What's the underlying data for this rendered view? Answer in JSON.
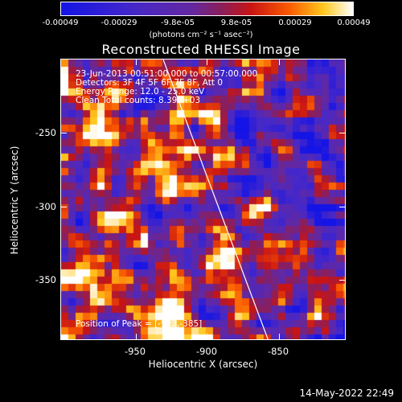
{
  "colorbar": {
    "ticks": [
      "-0.00049",
      "-0.00029",
      "-9.8e-05",
      "9.8e-05",
      "0.00029",
      "0.00049"
    ],
    "units_text": "(photons cm⁻² s⁻¹ asec⁻²)"
  },
  "title": "Reconstructed RHESSI Image",
  "info": {
    "time": "23-Jun-2013 00:51:00.000 to 00:57:00.000",
    "detectors": "Detectors: 3F 4F 5F 6F 7F 8F, Att 0",
    "energy": "Energy Range: 12.0 - 25.0 keV",
    "clean": "Clean    Total counts: 8.39E+03",
    "peak": "Position of Peak = [-923,-385]"
  },
  "axes": {
    "xlabel": "Heliocentric X (arcsec)",
    "ylabel": "Heliocentric Y (arcsec)",
    "xticks": [
      "-950",
      "-900",
      "-850"
    ],
    "yticks": [
      "-250",
      "-300",
      "-350"
    ]
  },
  "datestamp": "14-May-2022 22:49"
}
